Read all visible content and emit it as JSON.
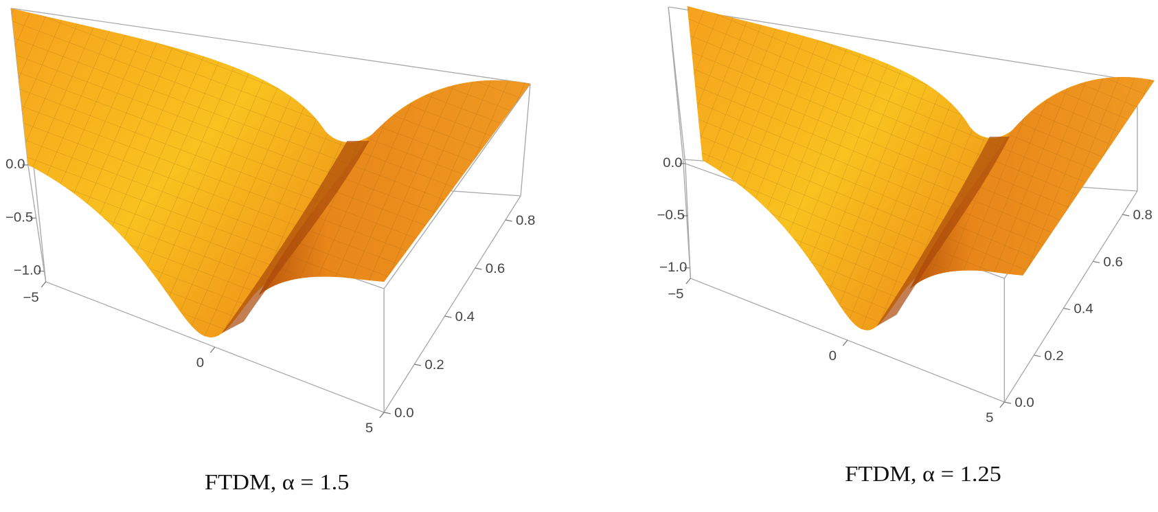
{
  "chart_data": [
    {
      "type": "surface3d",
      "caption": "FTDM, α = 1.5",
      "xlim": [
        -5,
        5
      ],
      "xticks": [
        {
          "value": -5,
          "label": "−5"
        },
        0,
        5
      ],
      "ylim": [
        0,
        0.9
      ],
      "yticks": [
        {
          "value": 0,
          "label": "0.0"
        },
        {
          "value": 0.2,
          "label": "0.2"
        },
        {
          "value": 0.4,
          "label": "0.4"
        },
        {
          "value": 0.6,
          "label": "0.6"
        },
        {
          "value": 0.8,
          "label": "0.8"
        }
      ],
      "zlim": [
        -1.1,
        0
      ],
      "zticks": [
        {
          "value": 0,
          "label": "0.0"
        },
        {
          "value": -0.5,
          "label": "−0.5"
        },
        {
          "value": -1,
          "label": "−1.0"
        }
      ]
    },
    {
      "type": "surface3d",
      "caption": "FTDM, α = 1.25",
      "xlim": [
        -5,
        5
      ],
      "xticks": [
        {
          "value": -5,
          "label": "−5"
        },
        0,
        5
      ],
      "ylim": [
        0,
        0.9
      ],
      "yticks": [
        {
          "value": 0,
          "label": "0.0"
        },
        {
          "value": 0.2,
          "label": "0.2"
        },
        {
          "value": 0.4,
          "label": "0.4"
        },
        {
          "value": 0.6,
          "label": "0.6"
        },
        {
          "value": 0.8,
          "label": "0.8"
        }
      ],
      "zlim": [
        -1.1,
        0
      ],
      "zticks": [
        {
          "value": 0,
          "label": "0.0"
        },
        {
          "value": -0.5,
          "label": "−0.5"
        },
        {
          "value": -1,
          "label": "−1.0"
        }
      ]
    }
  ]
}
